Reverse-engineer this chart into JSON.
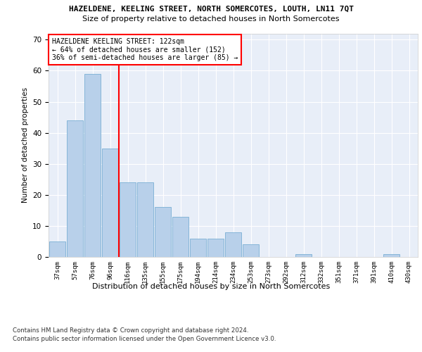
{
  "title": "HAZELDENE, KEELING STREET, NORTH SOMERCOTES, LOUTH, LN11 7QT",
  "subtitle": "Size of property relative to detached houses in North Somercotes",
  "xlabel": "Distribution of detached houses by size in North Somercotes",
  "ylabel": "Number of detached properties",
  "categories": [
    "37sqm",
    "57sqm",
    "76sqm",
    "96sqm",
    "116sqm",
    "135sqm",
    "155sqm",
    "175sqm",
    "194sqm",
    "214sqm",
    "234sqm",
    "253sqm",
    "273sqm",
    "292sqm",
    "312sqm",
    "332sqm",
    "351sqm",
    "371sqm",
    "391sqm",
    "410sqm",
    "430sqm"
  ],
  "values": [
    5,
    44,
    59,
    35,
    24,
    24,
    16,
    13,
    6,
    6,
    8,
    4,
    0,
    0,
    1,
    0,
    0,
    0,
    0,
    1,
    0
  ],
  "bar_color": "#b8d0ea",
  "bar_edge_color": "#7aafd4",
  "vline_color": "red",
  "vline_x": 3.5,
  "annotation_text": "HAZELDENE KEELING STREET: 122sqm\n← 64% of detached houses are smaller (152)\n36% of semi-detached houses are larger (85) →",
  "annotation_box_color": "white",
  "annotation_box_edge": "red",
  "ylim": [
    0,
    72
  ],
  "yticks": [
    0,
    10,
    20,
    30,
    40,
    50,
    60,
    70
  ],
  "footer1": "Contains HM Land Registry data © Crown copyright and database right 2024.",
  "footer2": "Contains public sector information licensed under the Open Government Licence v3.0.",
  "plot_bg_color": "#e8eef8"
}
